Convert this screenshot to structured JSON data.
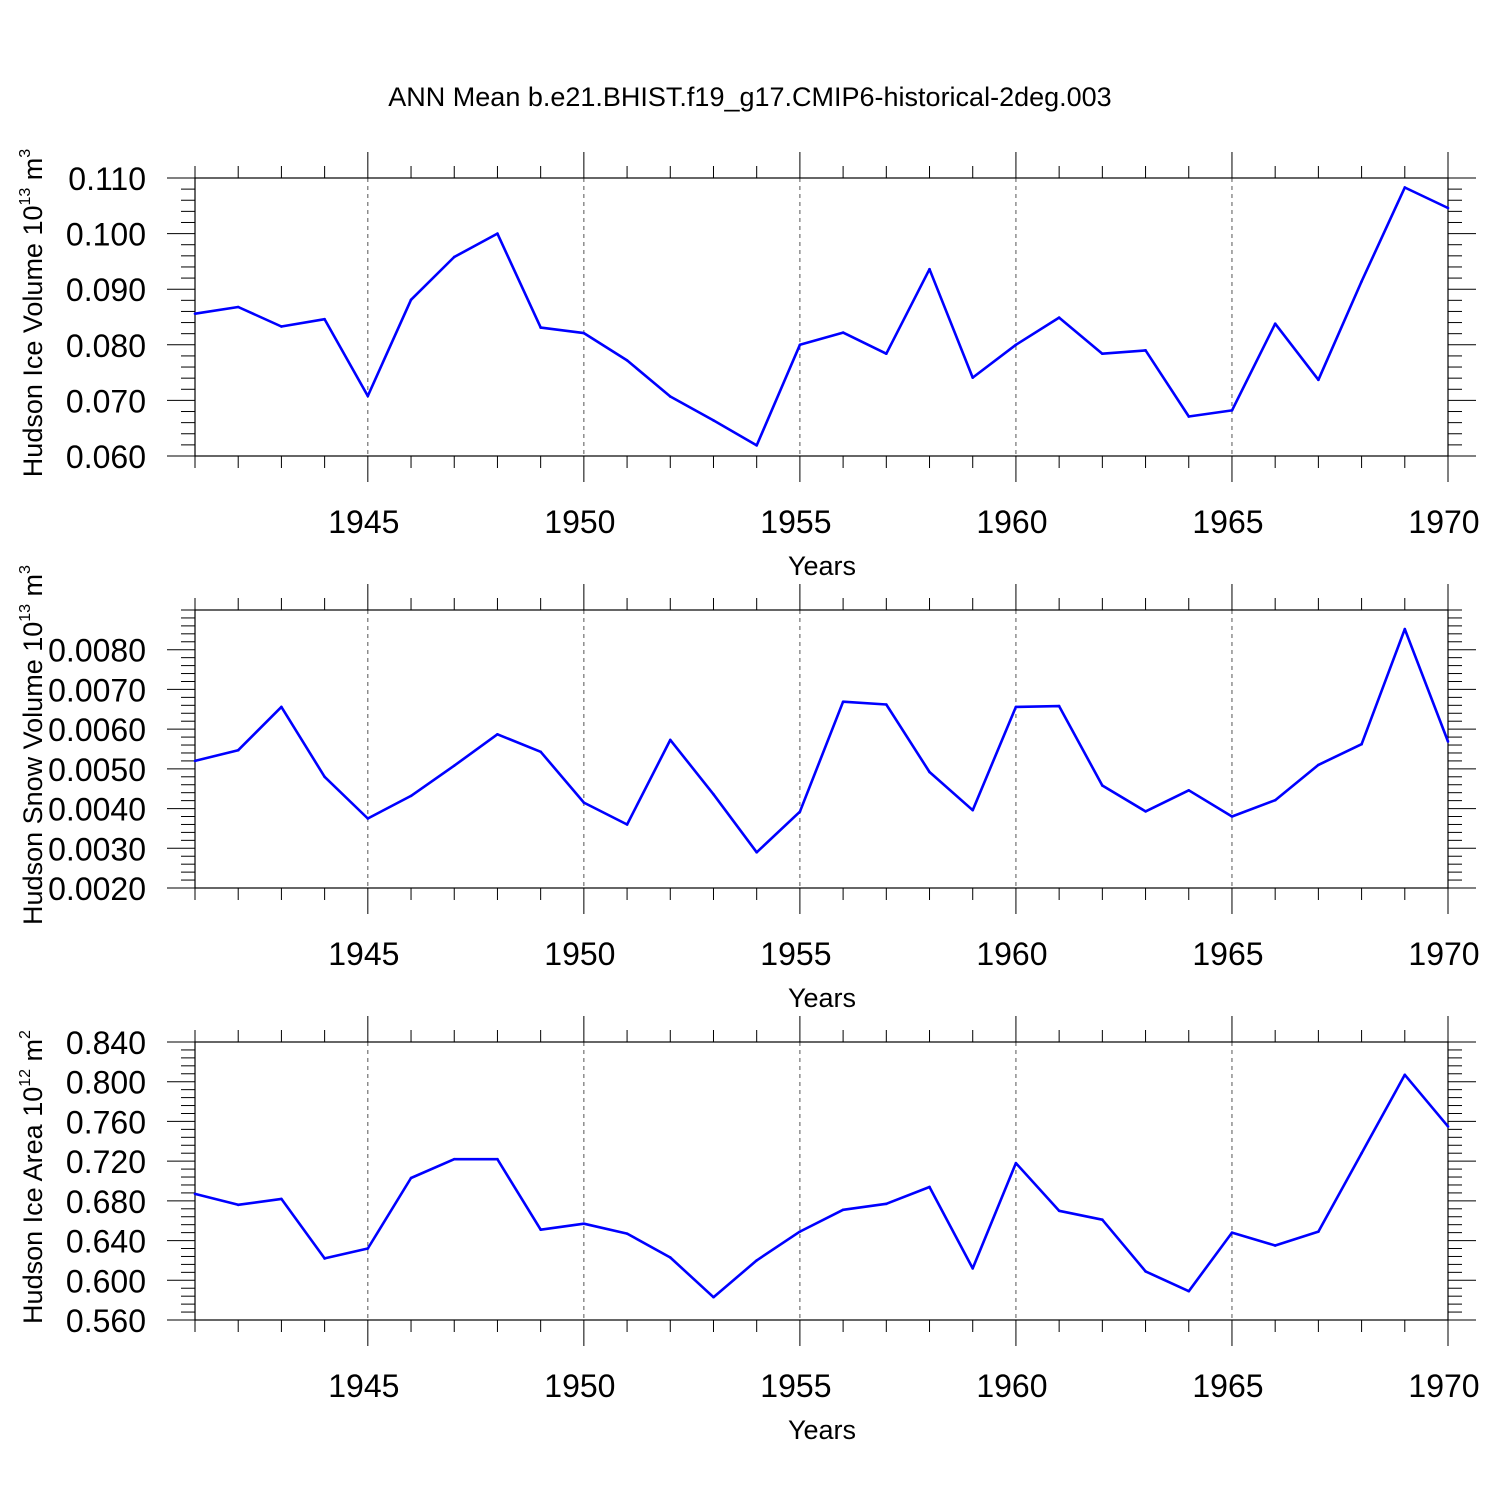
{
  "title": "ANN Mean b.e21.BHIST.f19_g17.CMIP6-historical-2deg.003",
  "line_color": "#0000ff",
  "chart_data": [
    {
      "type": "line",
      "ylabel": "Hudson Ice Volume 10",
      "ylabel_exp": "13",
      "ylabel_unit": " m",
      "ylabel_unit_exp": "3",
      "xlabel": "Years",
      "xlim": [
        1941,
        1970
      ],
      "ylim": [
        0.06,
        0.11
      ],
      "yticks": [
        0.06,
        0.07,
        0.08,
        0.09,
        0.1,
        0.11
      ],
      "ytick_labels": [
        "0.060",
        "0.070",
        "0.080",
        "0.090",
        "0.100",
        "0.110"
      ],
      "xticks": [
        1945,
        1950,
        1955,
        1960,
        1965,
        1970
      ],
      "xtick_labels": [
        "1945",
        "1950",
        "1955",
        "1960",
        "1965",
        "1970"
      ],
      "x": [
        1941,
        1942,
        1943,
        1944,
        1945,
        1946,
        1947,
        1948,
        1949,
        1950,
        1951,
        1952,
        1953,
        1954,
        1955,
        1956,
        1957,
        1958,
        1959,
        1960,
        1961,
        1962,
        1963,
        1964,
        1965,
        1966,
        1967,
        1968,
        1969,
        1970
      ],
      "values": [
        0.0856,
        0.0868,
        0.0833,
        0.0846,
        0.0708,
        0.0881,
        0.0958,
        0.1,
        0.0831,
        0.0821,
        0.0772,
        0.0707,
        0.0664,
        0.0619,
        0.08,
        0.0822,
        0.0784,
        0.0936,
        0.0741,
        0.08,
        0.0849,
        0.0784,
        0.079,
        0.0671,
        0.0682,
        0.0838,
        0.0737,
        0.0914,
        0.1083,
        0.1046
      ]
    },
    {
      "type": "line",
      "ylabel": "Hudson Snow Volume 10",
      "ylabel_exp": "13",
      "ylabel_unit": " m",
      "ylabel_unit_exp": "3",
      "xlabel": "Years",
      "xlim": [
        1941,
        1970
      ],
      "ylim": [
        0.002,
        0.009
      ],
      "yticks": [
        0.002,
        0.003,
        0.004,
        0.005,
        0.006,
        0.007,
        0.008
      ],
      "ytick_labels": [
        "0.0020",
        "0.0030",
        "0.0040",
        "0.0050",
        "0.0060",
        "0.0070",
        "0.0080"
      ],
      "xticks": [
        1945,
        1950,
        1955,
        1960,
        1965,
        1970
      ],
      "xtick_labels": [
        "1945",
        "1950",
        "1955",
        "1960",
        "1965",
        "1970"
      ],
      "x": [
        1941,
        1942,
        1943,
        1944,
        1945,
        1946,
        1947,
        1948,
        1949,
        1950,
        1951,
        1952,
        1953,
        1954,
        1955,
        1956,
        1957,
        1958,
        1959,
        1960,
        1961,
        1962,
        1963,
        1964,
        1965,
        1966,
        1967,
        1968,
        1969,
        1970
      ],
      "values": [
        0.0052,
        0.00547,
        0.00656,
        0.0048,
        0.00375,
        0.00432,
        0.00508,
        0.00587,
        0.00543,
        0.00415,
        0.0036,
        0.00573,
        0.00436,
        0.0029,
        0.00392,
        0.00669,
        0.00662,
        0.00492,
        0.00396,
        0.00656,
        0.00658,
        0.00458,
        0.00393,
        0.00446,
        0.0038,
        0.00421,
        0.0051,
        0.00562,
        0.00852,
        0.00569
      ]
    },
    {
      "type": "line",
      "ylabel": "Hudson Ice Area 10",
      "ylabel_exp": "12",
      "ylabel_unit": " m",
      "ylabel_unit_exp": "2",
      "xlabel": "Years",
      "xlim": [
        1941,
        1970
      ],
      "ylim": [
        0.56,
        0.84
      ],
      "yticks": [
        0.56,
        0.6,
        0.64,
        0.68,
        0.72,
        0.76,
        0.8,
        0.84
      ],
      "ytick_labels": [
        "0.560",
        "0.600",
        "0.640",
        "0.680",
        "0.720",
        "0.760",
        "0.800",
        "0.840"
      ],
      "xticks": [
        1945,
        1950,
        1955,
        1960,
        1965,
        1970
      ],
      "xtick_labels": [
        "1945",
        "1950",
        "1955",
        "1960",
        "1965",
        "1970"
      ],
      "x": [
        1941,
        1942,
        1943,
        1944,
        1945,
        1946,
        1947,
        1948,
        1949,
        1950,
        1951,
        1952,
        1953,
        1954,
        1955,
        1956,
        1957,
        1958,
        1959,
        1960,
        1961,
        1962,
        1963,
        1964,
        1965,
        1966,
        1967,
        1968,
        1969,
        1970
      ],
      "values": [
        0.687,
        0.676,
        0.682,
        0.622,
        0.632,
        0.703,
        0.722,
        0.722,
        0.651,
        0.657,
        0.647,
        0.623,
        0.583,
        0.62,
        0.649,
        0.671,
        0.677,
        0.694,
        0.612,
        0.718,
        0.67,
        0.661,
        0.609,
        0.589,
        0.648,
        0.635,
        0.649,
        0.728,
        0.807,
        0.755
      ]
    }
  ]
}
